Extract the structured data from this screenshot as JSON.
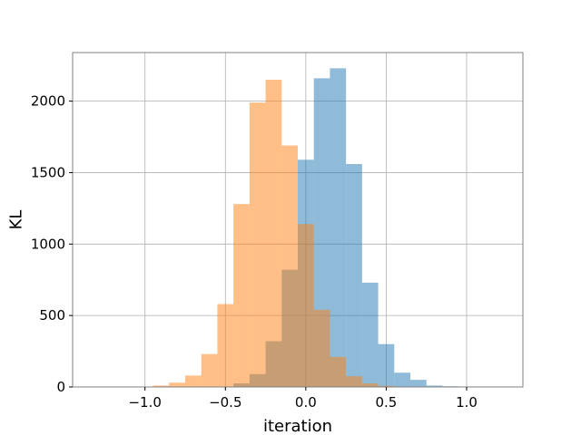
{
  "chart_data": {
    "type": "histogram",
    "title": "",
    "xlabel": "iteration",
    "ylabel": "KL",
    "xlim": [
      -1.45,
      1.35
    ],
    "ylim": [
      0,
      2340
    ],
    "grid": true,
    "x_ticks": [
      -1.0,
      -0.5,
      0.0,
      0.5,
      1.0
    ],
    "x_tick_labels": [
      "−1.0",
      "−0.5",
      "0.0",
      "0.5",
      "1.0"
    ],
    "y_ticks": [
      0,
      500,
      1000,
      1500,
      2000
    ],
    "y_tick_labels": [
      "0",
      "500",
      "1000",
      "1500",
      "2000"
    ],
    "series": [
      {
        "color": "#1f77b4",
        "opacity": 0.5,
        "bin_edges": [
          -1.25,
          -1.15,
          -1.05,
          -0.95,
          -0.85,
          -0.75,
          -0.65,
          -0.55,
          -0.45,
          -0.35,
          -0.25,
          -0.15,
          -0.05,
          0.05,
          0.15,
          0.25,
          0.35,
          0.45,
          0.55,
          0.65,
          0.75,
          0.85,
          0.95,
          1.05,
          1.15,
          1.25
        ],
        "counts": [
          0,
          0,
          0,
          0,
          0,
          0,
          0,
          0,
          25,
          90,
          320,
          820,
          1590,
          2160,
          2230,
          1560,
          730,
          300,
          100,
          50,
          10,
          5,
          0,
          0,
          0
        ]
      },
      {
        "color": "#ff7f0e",
        "opacity": 0.5,
        "bin_edges": [
          -0.95,
          -0.85,
          -0.75,
          -0.65,
          -0.55,
          -0.45,
          -0.35,
          -0.25,
          -0.15,
          -0.05,
          0.05,
          0.15,
          0.25,
          0.35,
          0.45,
          0.55,
          0.65
        ],
        "counts": [
          10,
          30,
          80,
          230,
          580,
          1280,
          1990,
          2150,
          1690,
          1140,
          540,
          210,
          75,
          25,
          8,
          2
        ]
      }
    ]
  }
}
